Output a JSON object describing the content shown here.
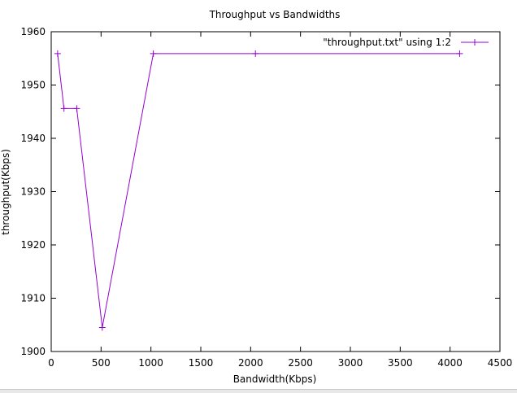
{
  "chart_data": {
    "type": "line",
    "title": "Throughput vs Bandwidths",
    "xlabel": "Bandwidth(Kbps)",
    "ylabel": "throughput(Kbps)",
    "xlim": [
      0,
      4500
    ],
    "ylim": [
      1900,
      1960
    ],
    "xticks": [
      0,
      500,
      1000,
      1500,
      2000,
      2500,
      3000,
      3500,
      4000,
      4500
    ],
    "yticks": [
      1900,
      1910,
      1920,
      1930,
      1940,
      1950,
      1960
    ],
    "grid": false,
    "legend_position": "top-right",
    "series": [
      {
        "name": "\"throughput.txt\" using 1:2",
        "color": "#9400d3",
        "marker": "plus",
        "x": [
          64,
          128,
          256,
          512,
          1024,
          2048,
          4096
        ],
        "y": [
          1955.9,
          1945.6,
          1945.6,
          1904.5,
          1955.9,
          1955.9,
          1955.9
        ]
      }
    ]
  }
}
